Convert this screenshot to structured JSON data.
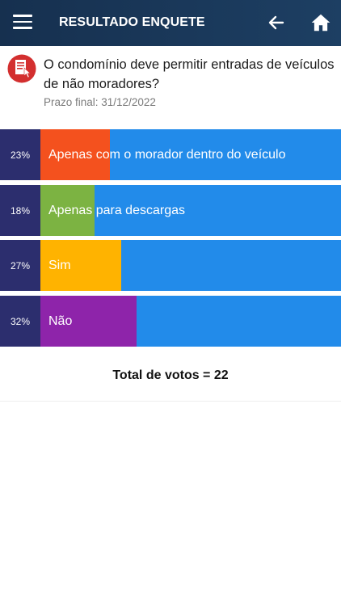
{
  "header": {
    "title": "RESULTADO ENQUETE",
    "icons": [
      "menu-icon",
      "arrow-left-icon",
      "home-icon"
    ]
  },
  "question": {
    "text": "O condomínio deve permitir entradas de veículos de não moradores?",
    "deadline": "Prazo final: 31/12/2022",
    "icon": "poll-document-icon"
  },
  "options": [
    {
      "percent_label": "23%",
      "percent": 23,
      "label": "Apenas com o morador dentro do veículo",
      "color": "#f4511e"
    },
    {
      "percent_label": "18%",
      "percent": 18,
      "label": "Apenas para descargas",
      "color": "#7cb342"
    },
    {
      "percent_label": "27%",
      "percent": 27,
      "label": "Sim",
      "color": "#ffb300"
    },
    {
      "percent_label": "32%",
      "percent": 32,
      "label": "Não",
      "color": "#8e24aa"
    }
  ],
  "total": "Total de votos = 22",
  "colors": {
    "header": "#1a3a5c",
    "bar_background": "#228bea",
    "percent_background": "#2c2e6e"
  }
}
